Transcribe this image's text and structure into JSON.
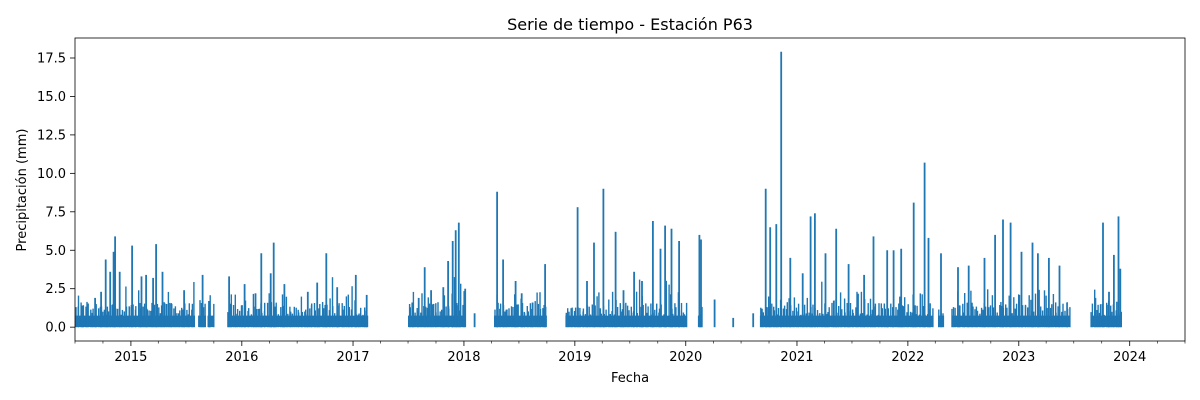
{
  "chart_data": {
    "type": "line",
    "title": "Serie de tiempo - Estación P63",
    "xlabel": "Fecha",
    "ylabel": "Precipitación (mm)",
    "x_range": [
      "2014-07-01",
      "2024-07-01"
    ],
    "ylim": [
      -0.9,
      18.8
    ],
    "x_ticks": [
      "2015",
      "2016",
      "2017",
      "2018",
      "2019",
      "2020",
      "2021",
      "2022",
      "2023",
      "2024"
    ],
    "y_ticks": [
      "0.0",
      "2.5",
      "5.0",
      "7.5",
      "10.0",
      "12.5",
      "15.0",
      "17.5"
    ],
    "grid": false,
    "series_color": "#1f77b4",
    "active_periods": [
      [
        "2014-07-01",
        "2015-07-31"
      ],
      [
        "2015-08-10",
        "2015-09-05"
      ],
      [
        "2015-09-10",
        "2015-10-01"
      ],
      [
        "2015-11-15",
        "2017-02-20"
      ],
      [
        "2017-07-01",
        "2018-01-05"
      ],
      [
        "2018-04-10",
        "2018-10-01"
      ],
      [
        "2018-12-01",
        "2020-01-05"
      ],
      [
        "2020-02-10",
        "2020-02-25"
      ],
      [
        "2020-09-01",
        "2022-03-25"
      ],
      [
        "2022-04-10",
        "2022-04-30"
      ],
      [
        "2022-05-25",
        "2023-06-20"
      ],
      [
        "2023-08-25",
        "2023-12-05"
      ]
    ],
    "peaks": [
      [
        "2014-07-25",
        1.4
      ],
      [
        "2014-09-05",
        1.9
      ],
      [
        "2014-09-25",
        2.3
      ],
      [
        "2014-10-10",
        4.4
      ],
      [
        "2014-10-25",
        3.6
      ],
      [
        "2014-11-05",
        4.9
      ],
      [
        "2014-11-10",
        5.9
      ],
      [
        "2014-11-25",
        3.6
      ],
      [
        "2015-01-05",
        5.3
      ],
      [
        "2015-02-05",
        3.3
      ],
      [
        "2015-02-20",
        3.4
      ],
      [
        "2015-03-15",
        3.2
      ],
      [
        "2015-03-25",
        5.4
      ],
      [
        "2015-04-15",
        3.6
      ],
      [
        "2015-05-15",
        1.5
      ],
      [
        "2015-06-25",
        2.4
      ],
      [
        "2015-08-25",
        3.4
      ],
      [
        "2015-09-15",
        1.7
      ],
      [
        "2015-11-20",
        3.3
      ],
      [
        "2016-01-10",
        2.8
      ],
      [
        "2016-02-15",
        2.2
      ],
      [
        "2016-03-05",
        4.8
      ],
      [
        "2016-04-05",
        3.5
      ],
      [
        "2016-04-15",
        5.5
      ],
      [
        "2016-05-20",
        2.8
      ],
      [
        "2016-08-05",
        2.3
      ],
      [
        "2016-09-05",
        2.9
      ],
      [
        "2016-10-05",
        4.8
      ],
      [
        "2016-11-10",
        2.6
      ],
      [
        "2017-01-10",
        3.4
      ],
      [
        "2017-02-15",
        2.1
      ],
      [
        "2017-07-15",
        1.6
      ],
      [
        "2017-08-05",
        1.9
      ],
      [
        "2017-08-25",
        3.9
      ],
      [
        "2017-09-15",
        2.4
      ],
      [
        "2017-10-25",
        2.6
      ],
      [
        "2017-11-10",
        4.3
      ],
      [
        "2017-11-25",
        5.6
      ],
      [
        "2017-12-05",
        6.3
      ],
      [
        "2017-12-15",
        6.8
      ],
      [
        "2018-01-05",
        2.5
      ],
      [
        "2018-02-05",
        0.9
      ],
      [
        "2018-04-20",
        8.8
      ],
      [
        "2018-05-10",
        4.4
      ],
      [
        "2018-06-20",
        3.0
      ],
      [
        "2018-07-10",
        2.2
      ],
      [
        "2018-08-15",
        1.6
      ],
      [
        "2018-09-25",
        4.1
      ],
      [
        "2019-01-10",
        7.8
      ],
      [
        "2019-02-10",
        3.0
      ],
      [
        "2019-03-05",
        5.5
      ],
      [
        "2019-04-05",
        9.0
      ],
      [
        "2019-05-15",
        6.2
      ],
      [
        "2019-06-10",
        2.4
      ],
      [
        "2019-07-15",
        3.6
      ],
      [
        "2019-08-10",
        3.0
      ],
      [
        "2019-09-15",
        6.9
      ],
      [
        "2019-10-10",
        5.1
      ],
      [
        "2019-10-25",
        6.6
      ],
      [
        "2019-11-15",
        6.4
      ],
      [
        "2019-12-10",
        5.6
      ],
      [
        "2020-02-15",
        6.0
      ],
      [
        "2020-02-20",
        5.7
      ],
      [
        "2020-04-05",
        1.8
      ],
      [
        "2020-06-05",
        0.6
      ],
      [
        "2020-08-10",
        0.9
      ],
      [
        "2020-09-20",
        9.0
      ],
      [
        "2020-10-05",
        6.5
      ],
      [
        "2020-10-25",
        6.7
      ],
      [
        "2020-11-10",
        17.9
      ],
      [
        "2020-12-10",
        4.5
      ],
      [
        "2021-01-20",
        3.5
      ],
      [
        "2021-02-15",
        7.2
      ],
      [
        "2021-03-01",
        7.4
      ],
      [
        "2021-04-05",
        4.8
      ],
      [
        "2021-05-10",
        6.4
      ],
      [
        "2021-06-20",
        4.1
      ],
      [
        "2021-08-10",
        3.4
      ],
      [
        "2021-09-10",
        5.9
      ],
      [
        "2021-10-25",
        5.0
      ],
      [
        "2021-11-15",
        5.0
      ],
      [
        "2021-12-10",
        5.1
      ],
      [
        "2022-01-20",
        8.1
      ],
      [
        "2022-02-25",
        10.7
      ],
      [
        "2022-03-10",
        5.8
      ],
      [
        "2022-04-20",
        4.8
      ],
      [
        "2022-06-15",
        3.9
      ],
      [
        "2022-07-20",
        4.0
      ],
      [
        "2022-09-10",
        4.5
      ],
      [
        "2022-10-15",
        6.0
      ],
      [
        "2022-11-10",
        7.0
      ],
      [
        "2022-12-05",
        6.8
      ],
      [
        "2023-01-10",
        4.9
      ],
      [
        "2023-02-15",
        5.5
      ],
      [
        "2023-03-05",
        4.8
      ],
      [
        "2023-04-10",
        4.5
      ],
      [
        "2023-05-15",
        4.0
      ],
      [
        "2023-06-10",
        1.2
      ],
      [
        "2023-09-10",
        1.9
      ],
      [
        "2023-10-05",
        6.8
      ],
      [
        "2023-10-25",
        2.3
      ],
      [
        "2023-11-10",
        4.7
      ],
      [
        "2023-11-25",
        7.2
      ],
      [
        "2023-12-01",
        3.8
      ]
    ]
  }
}
